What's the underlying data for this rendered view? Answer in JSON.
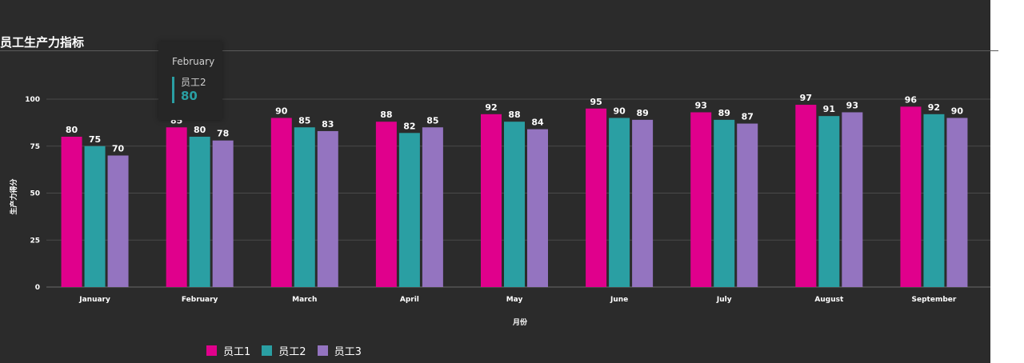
{
  "title": "员工生产力指标",
  "colors": {
    "background": "#2b2b2b",
    "grid": "#4a4a4a",
    "text": "#ffffff"
  },
  "chart_data": {
    "type": "bar",
    "title": "员工生产力指标",
    "xlabel": "月份",
    "ylabel": "生产力得分",
    "ylim": [
      0,
      100
    ],
    "yticks": [
      0,
      25,
      50,
      75,
      100
    ],
    "grid": true,
    "legend_position": "bottom-left",
    "categories": [
      "January",
      "February",
      "March",
      "April",
      "May",
      "June",
      "July",
      "August",
      "September"
    ],
    "series": [
      {
        "name": "员工1",
        "color": "#e0008c",
        "values": [
          80,
          85,
          90,
          88,
          92,
          95,
          93,
          97,
          96
        ]
      },
      {
        "name": "员工2",
        "color": "#2a9fa3",
        "values": [
          75,
          80,
          85,
          82,
          88,
          90,
          89,
          91,
          92
        ]
      },
      {
        "name": "员工3",
        "color": "#9474c0",
        "values": [
          70,
          78,
          83,
          85,
          84,
          89,
          87,
          93,
          90
        ]
      }
    ]
  },
  "tooltip": {
    "category": "February",
    "series": "员工2",
    "value": "80"
  }
}
